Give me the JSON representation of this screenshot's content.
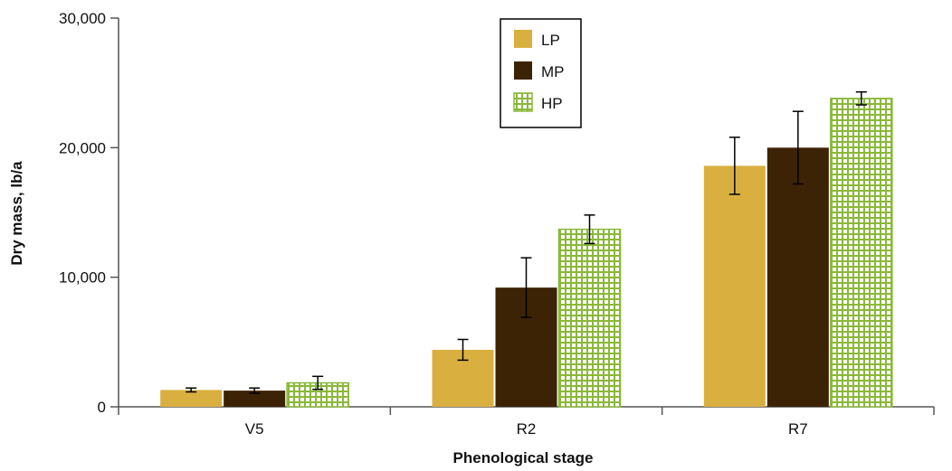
{
  "chart_data": {
    "type": "bar",
    "title": "",
    "xlabel": "Phenological stage",
    "ylabel": "Dry mass, lb/a",
    "ylim": [
      0,
      30000
    ],
    "yticks": [
      0,
      10000,
      20000,
      30000
    ],
    "ytick_labels": [
      "0",
      "10,000",
      "20,000",
      "30,000"
    ],
    "categories": [
      "V5",
      "R2",
      "R7"
    ],
    "series": [
      {
        "name": "LP",
        "values": [
          1300,
          4400,
          18600
        ],
        "errors": [
          150,
          800,
          2200
        ],
        "color": "#d9b040",
        "pattern": "solid"
      },
      {
        "name": "MP",
        "values": [
          1250,
          9200,
          20000
        ],
        "errors": [
          200,
          2300,
          2800
        ],
        "color": "#3d2305",
        "pattern": "solid"
      },
      {
        "name": "HP",
        "values": [
          1850,
          13700,
          23800
        ],
        "errors": [
          500,
          1100,
          500
        ],
        "color": "#8ab83a",
        "pattern": "grid"
      }
    ],
    "grid": false,
    "legend_position": "top-center"
  }
}
